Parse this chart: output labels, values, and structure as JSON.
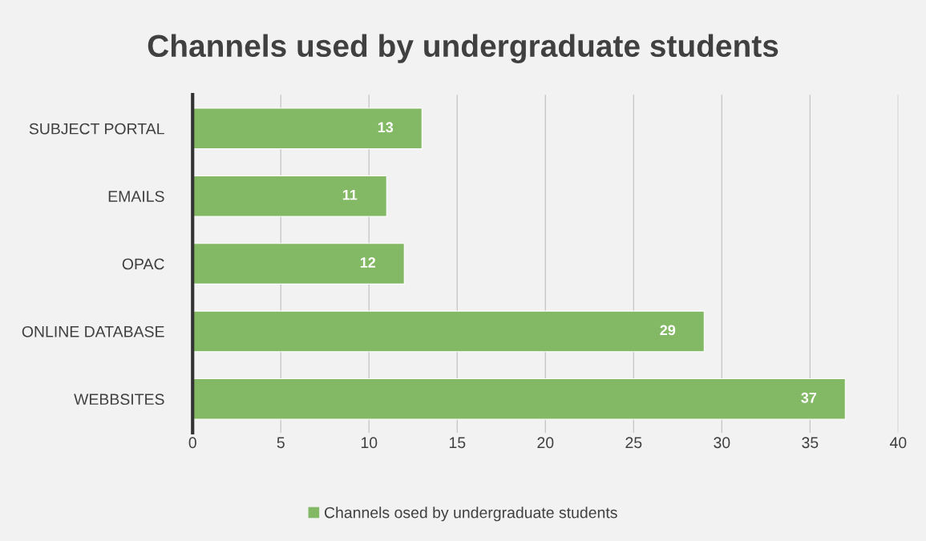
{
  "chart_data": {
    "type": "bar",
    "orientation": "horizontal",
    "title": "Channels used by undergraduate students",
    "categories": [
      "SUBJECT PORTAL",
      "EMAILS",
      "OPAC",
      "ONLINE DATABASE",
      "WEBBSITES"
    ],
    "series": [
      {
        "name": "Channels osed by undergraduate students",
        "color": "#83b865",
        "values": [
          13,
          11,
          12,
          29,
          37
        ]
      }
    ],
    "xlim": [
      0,
      40
    ],
    "xticks": [
      0,
      5,
      10,
      15,
      20,
      25,
      30,
      35,
      40
    ],
    "grid": "x",
    "legend": "bottom",
    "data_labels": true
  }
}
